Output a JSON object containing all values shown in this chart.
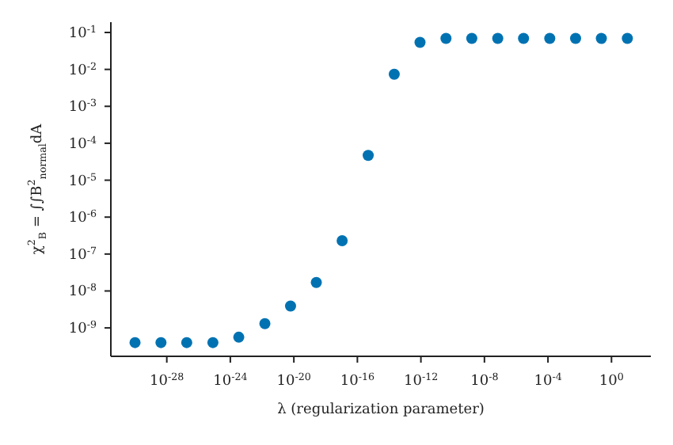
{
  "chart_data": {
    "type": "scatter",
    "xlabel": "λ (regularization parameter)",
    "ylabel": "χ$^{2}$$_{B}$ = ∫∫B$^{2}$$_{normal}$dA",
    "x": [
      1e-30,
      4.3e-29,
      1.8e-27,
      8e-26,
      3.4e-24,
      1.5e-22,
      6.2e-21,
      2.6e-19,
      1.1e-17,
      4.8e-16,
      2.1e-14,
      8.8e-13,
      3.8e-11,
      1.6e-09,
      6.9e-08,
      2.9e-06,
      0.00013,
      0.0055,
      0.23,
      10
    ],
    "series": [
      {
        "color": "#0072b2",
        "values": [
          4e-10,
          4e-10,
          4e-10,
          4e-10,
          5.6e-10,
          1.3e-09,
          3.9e-09,
          1.7e-08,
          2.3e-07,
          4.7e-05,
          0.0074,
          0.054,
          0.069,
          0.069,
          0.069,
          0.069,
          0.069,
          0.069,
          0.069,
          0.069
        ]
      }
    ],
    "log": "xy",
    "marker": "circle",
    "xlim": [
      3e-32,
      300
    ],
    "ylim": [
      1.7e-10,
      0.19
    ],
    "xticks": [
      {
        "value": 1e-28,
        "label": "10$^{-28}$"
      },
      {
        "value": 1e-24,
        "label": "10$^{-24}$"
      },
      {
        "value": 1e-20,
        "label": "10$^{-20}$"
      },
      {
        "value": 1e-16,
        "label": "10$^{-16}$"
      },
      {
        "value": 1e-12,
        "label": "10$^{-12}$"
      },
      {
        "value": 1e-08,
        "label": "10$^{-8}$"
      },
      {
        "value": 0.0001,
        "label": "10$^{-4}$"
      },
      {
        "value": 1,
        "label": "10$^{0}$"
      }
    ],
    "yticks": [
      {
        "value": 1e-09,
        "label": "10$^{-9}$"
      },
      {
        "value": 1e-08,
        "label": "10$^{-8}$"
      },
      {
        "value": 1e-07,
        "label": "10$^{-7}$"
      },
      {
        "value": 1e-06,
        "label": "10$^{-6}$"
      },
      {
        "value": 1e-05,
        "label": "10$^{-5}$"
      },
      {
        "value": 0.0001,
        "label": "10$^{-4}$"
      },
      {
        "value": 0.001,
        "label": "10$^{-3}$"
      },
      {
        "value": 0.01,
        "label": "10$^{-2}$"
      },
      {
        "value": 0.1,
        "label": "10$^{-1}$"
      }
    ]
  }
}
